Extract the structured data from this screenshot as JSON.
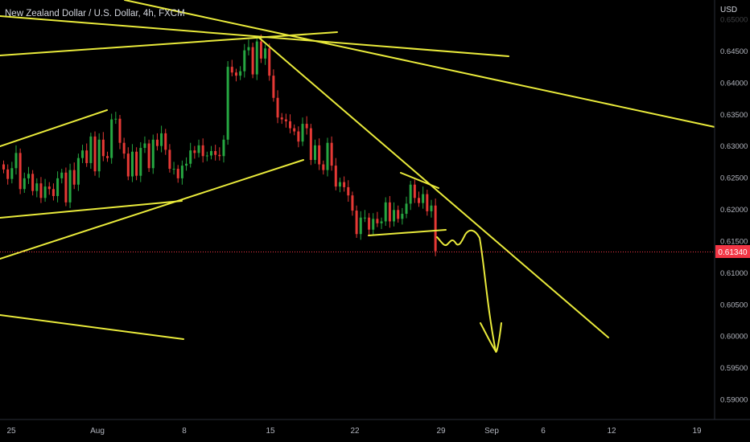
{
  "header": {
    "title": "New Zealand Dollar / U.S. Dollar, 4h, FXCM"
  },
  "axis": {
    "currency": "USD"
  },
  "price_tag": {
    "value": "0.61340",
    "color": "#f23645"
  },
  "colors": {
    "background": "#000000",
    "up": "#26a641",
    "down": "#e53935",
    "drawing": "#e9ea3b",
    "axis_text": "#b2b5be"
  },
  "chart_data": {
    "type": "candlestick",
    "title": "New Zealand Dollar / U.S. Dollar, 4h, FXCM",
    "xlabel": "",
    "ylabel": "USD",
    "ylim": [
      0.586,
      0.6555
    ],
    "y_ticks": [
      "0.65000",
      "0.64500",
      "0.64000",
      "0.63500",
      "0.63000",
      "0.62500",
      "0.62000",
      "0.61500",
      "0.61000",
      "0.60500",
      "0.60000",
      "0.59500",
      "0.59000"
    ],
    "x_ticks": [
      "25",
      "Aug",
      "8",
      "15",
      "22",
      "29",
      "Sep",
      "6",
      "12",
      "19"
    ],
    "last_price": 0.6134,
    "grid": false,
    "series": [
      {
        "values": [
          0.6263,
          0.6248,
          0.6265,
          0.6289,
          0.6232,
          0.6249,
          0.6256,
          0.6229,
          0.6241,
          0.6218,
          0.6236,
          0.6232,
          0.6221,
          0.6249,
          0.6258,
          0.6211,
          0.6262,
          0.6239,
          0.6281,
          0.6293,
          0.6273,
          0.6315,
          0.626,
          0.631,
          0.6284,
          0.6281,
          0.6342,
          0.6343,
          0.6305,
          0.6288,
          0.6252,
          0.6291,
          0.6253,
          0.6297,
          0.6304,
          0.6265,
          0.631,
          0.63,
          0.632,
          0.6294,
          0.6264,
          0.6264,
          0.6249,
          0.6269,
          0.6272,
          0.6293,
          0.6289,
          0.6301,
          0.6284,
          0.6285,
          0.6292,
          0.6286,
          0.6284,
          0.631,
          0.6425,
          0.6416,
          0.6411,
          0.6418,
          0.6451,
          0.6456,
          0.6413,
          0.6465,
          0.6438,
          0.6454,
          0.6411,
          0.6376,
          0.6345,
          0.6342,
          0.6339,
          0.6328,
          0.6323,
          0.6307,
          0.6335,
          0.6328,
          0.6278,
          0.6301,
          0.6271,
          0.6262,
          0.6305,
          0.6269,
          0.6236,
          0.6243,
          0.6235,
          0.6222,
          0.6198,
          0.6161,
          0.6187,
          0.6187,
          0.6168,
          0.6185,
          0.6178,
          0.6181,
          0.6211,
          0.6181,
          0.6199,
          0.6185,
          0.6193,
          0.6209,
          0.6239,
          0.6218,
          0.621,
          0.6224,
          0.6197,
          0.6206,
          0.6134
        ]
      }
    ],
    "projection": {
      "description": "",
      "path": [
        [
          0.6134,
          0.6134
        ]
      ]
    }
  }
}
